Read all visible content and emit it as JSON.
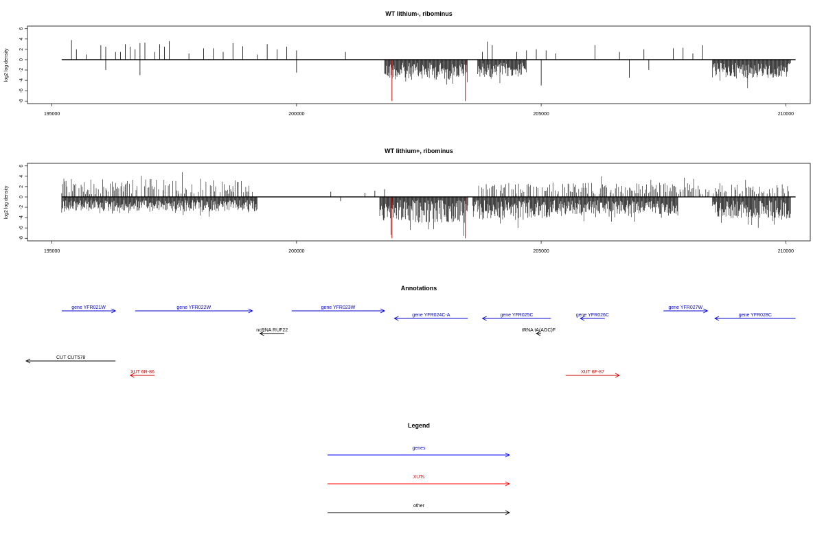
{
  "chart_data": [
    {
      "type": "bar",
      "title": "WT lithium-, ribominus",
      "ylabel": "log2 log density",
      "xlim": [
        194500,
        210500
      ],
      "ylim": [
        -8.5,
        6.5
      ],
      "xticks": [
        195000,
        200000,
        205000,
        210000
      ],
      "yticks": [
        -8,
        -6,
        -4,
        -2,
        0,
        2,
        4,
        6
      ],
      "baseline_range": [
        195200,
        210200
      ],
      "bar_color": "#000000",
      "highlight_color": "#cc0000",
      "highlight_bars": [
        {
          "x": 201950,
          "y": -8
        },
        {
          "x": 203450,
          "y": -8
        }
      ],
      "positive_bars": [
        [
          195400,
          3.8
        ],
        [
          195500,
          2
        ],
        [
          195700,
          1
        ],
        [
          196000,
          2.8
        ],
        [
          196100,
          2.5
        ],
        [
          196300,
          1.5
        ],
        [
          196400,
          1.5
        ],
        [
          196500,
          3
        ],
        [
          196600,
          2.5
        ],
        [
          196700,
          2
        ],
        [
          196800,
          3.2
        ],
        [
          196900,
          3.3
        ],
        [
          197100,
          1.5
        ],
        [
          197200,
          3
        ],
        [
          197300,
          2.5
        ],
        [
          197400,
          3.6
        ],
        [
          197800,
          1.2
        ],
        [
          198100,
          2.2
        ],
        [
          198300,
          2.2
        ],
        [
          198500,
          1.5
        ],
        [
          198700,
          3.2
        ],
        [
          198900,
          2.6
        ],
        [
          199200,
          1
        ],
        [
          199400,
          3
        ],
        [
          199600,
          2
        ],
        [
          199800,
          2.5
        ],
        [
          200000,
          1.8
        ],
        [
          201000,
          1.5
        ],
        [
          203800,
          1.5
        ],
        [
          203900,
          3.5
        ],
        [
          204000,
          2.8
        ],
        [
          204500,
          1.5
        ],
        [
          204700,
          1.8
        ],
        [
          204900,
          2
        ],
        [
          205100,
          1.8
        ],
        [
          205300,
          1.2
        ],
        [
          206100,
          2.8
        ],
        [
          206600,
          1.5
        ],
        [
          207100,
          2
        ],
        [
          207700,
          2.2
        ],
        [
          207900,
          2.3
        ],
        [
          208100,
          1.2
        ],
        [
          208300,
          2.8
        ]
      ],
      "negative_bars": [
        [
          196100,
          -2
        ],
        [
          196800,
          -3
        ],
        [
          200000,
          -2.5
        ],
        [
          205000,
          -5
        ],
        [
          206800,
          -3.5
        ],
        [
          207200,
          -2
        ]
      ],
      "dense_negative_regions": [
        {
          "start": 201800,
          "end": 203500,
          "min": -6
        },
        {
          "start": 203700,
          "end": 204700,
          "min": -5
        },
        {
          "start": 208500,
          "end": 210100,
          "min": -5.5
        }
      ]
    },
    {
      "type": "bar",
      "title": "WT lithium+, ribominus",
      "ylabel": "log2 log density",
      "xlim": [
        194500,
        210500
      ],
      "ylim": [
        -8.5,
        6.5
      ],
      "xticks": [
        195000,
        200000,
        205000,
        210000
      ],
      "yticks": [
        -8,
        -6,
        -4,
        -2,
        0,
        2,
        4,
        6
      ],
      "baseline_range": [
        195200,
        210200
      ],
      "bar_color": "#000000",
      "highlight_color": "#cc0000",
      "highlight_bars": [
        {
          "x": 201950,
          "y": -8
        },
        {
          "x": 203450,
          "y": -8
        }
      ],
      "dense_positive_regions": [
        {
          "start": 195200,
          "end": 199100,
          "max": 5.5
        },
        {
          "start": 203700,
          "end": 210100,
          "max": 4
        }
      ],
      "dense_negative_regions": [
        {
          "start": 195200,
          "end": 199200,
          "min": -4
        },
        {
          "start": 201700,
          "end": 203500,
          "min": -8
        },
        {
          "start": 203600,
          "end": 205200,
          "min": -7
        },
        {
          "start": 205200,
          "end": 207800,
          "min": -5
        },
        {
          "start": 208500,
          "end": 210100,
          "min": -6.5
        }
      ],
      "sparse_bars": [
        [
          200700,
          1
        ],
        [
          200900,
          -0.8
        ],
        [
          201400,
          0.8
        ],
        [
          201600,
          1.2
        ],
        [
          201800,
          1.5
        ]
      ]
    }
  ],
  "annotations": {
    "title": "Annotations",
    "items": [
      {
        "label": "gene YFR021W",
        "start": 195200,
        "end": 196300,
        "strand": "+",
        "row": 0,
        "color": "#0000cc"
      },
      {
        "label": "gene YFR022W",
        "start": 196700,
        "end": 199100,
        "strand": "+",
        "row": 0,
        "color": "#0000cc"
      },
      {
        "label": "gene YFR023W",
        "start": 199900,
        "end": 201800,
        "strand": "+",
        "row": 0,
        "color": "#0000cc"
      },
      {
        "label": "gene YFR024C-A",
        "start": 202000,
        "end": 203500,
        "strand": "-",
        "row": 1,
        "color": "#0000cc"
      },
      {
        "label": "gene YFR025C",
        "start": 203800,
        "end": 205200,
        "strand": "-",
        "row": 1,
        "color": "#0000cc"
      },
      {
        "label": "gene YFR026C",
        "start": 205800,
        "end": 206300,
        "strand": "-",
        "row": 1,
        "color": "#0000cc"
      },
      {
        "label": "gene YFR027W",
        "start": 207500,
        "end": 208400,
        "strand": "+",
        "row": 0,
        "color": "#0000cc"
      },
      {
        "label": "gene YFR028C",
        "start": 208550,
        "end": 210200,
        "strand": "-",
        "row": 1,
        "color": "#0000cc"
      },
      {
        "label": "ncRNA RUF22",
        "start": 199250,
        "end": 199750,
        "strand": "-",
        "row": 2,
        "color": "#000000"
      },
      {
        "label": "tRNA tA(AGC)F",
        "start": 204900,
        "end": 205000,
        "strand": "-",
        "row": 2,
        "color": "#000000"
      },
      {
        "label": "CUT CUT578",
        "start": 194400,
        "end": 196300,
        "strand": "-",
        "row": 3,
        "color": "#000000"
      },
      {
        "label": "XUT 6R-86",
        "start": 196600,
        "end": 197100,
        "strand": "-",
        "row": 4,
        "color": "#cc0000"
      },
      {
        "label": "XUT 6F-87",
        "start": 205500,
        "end": 206600,
        "strand": "+",
        "row": 4,
        "color": "#cc0000"
      }
    ]
  },
  "legend": {
    "title": "Legend",
    "items": [
      {
        "label": "genes",
        "color": "#0000ff"
      },
      {
        "label": "XUTs",
        "color": "#ff0000"
      },
      {
        "label": "other",
        "color": "#000000"
      }
    ]
  }
}
